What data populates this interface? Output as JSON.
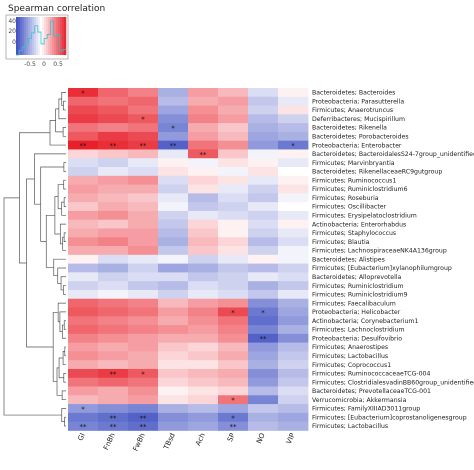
{
  "legend": {
    "title": "Spearman correlation",
    "hist_ticks": [
      "0",
      "20",
      "40"
    ],
    "color_ticks": [
      "-0.5",
      "0",
      "0.5"
    ]
  },
  "chart_data": {
    "type": "heatmap",
    "title": "",
    "columns": [
      "GI",
      "FnBh",
      "FwBh",
      "TBsd",
      "Ach",
      "SP",
      "NO",
      "VIP"
    ],
    "rows": [
      "Bacteroidetes; Bacteroides",
      "Proteobacteria; Parasutterella",
      "Firmicutes; Anaerotruncus",
      "Deferribacteres; Mucispirillum",
      "Bacteroidetes; Rikenella",
      "Bacteroidetes; Porobacteroides",
      "Proteobacteria; Enterobacter",
      "Bacteroidetes; BacteroidalesS24-7group_unidentified",
      "Firmicutes; Marvinbryantia",
      "Bacteroidetes; RikenellaceaeRC9gutgroup",
      "Firmicutes; Ruminococcus1",
      "Firmicutes; Ruminiclostridium6",
      "Firmicutes; Roseburia",
      "Firmicutes; Oscillibacter",
      "Firmicutes; Erysipelatoclostridium",
      "Actinobacteria; Enterorhabdus",
      "Firmicutes; Staphylococcus",
      "Firmicutes; Blautia",
      "Firmicutes; LachnospiraceaeNK4A136group",
      "Bacteroidetes; Alistipes",
      "Firmicutes; [Eubacterium]xylanophilumgroup",
      "Bacteroidetes; Alloprevotella",
      "Firmicutes; Ruminiclostridium",
      "Firmicutes; Ruminiclostridium9",
      "Firmicutes; Faecalibaculum",
      "Proteobacteria; Helicobacter",
      "Actinobacteria; Corynebacterium1",
      "Firmicutes; Lachnoclostridium",
      "Proteobacteria; Desulfovibrio",
      "Firmicutes; Anaerostipes",
      "Firmicutes; Lactobacillus",
      "Firmicutes; Coprococcus1",
      "Firmicutes; RuminococcaceaeTCG-004",
      "Firmicutes; ClostridialesvadinBB60group_unidentified",
      "Bacteroidetes; PrevotellaceaeTCG-001",
      "Verrucomicrobia; Akkermansia",
      "Firmicutes; FamilyXIIIAD3011group",
      "Firmicutes; [Eubacterium]coprostanoligenesgroup",
      "Firmicutes; Lactobacillus"
    ],
    "values": [
      [
        0.75,
        0.55,
        0.45,
        -0.35,
        0.35,
        0.25,
        -0.15,
        0.05
      ],
      [
        0.55,
        0.5,
        0.55,
        -0.3,
        0.3,
        0.35,
        -0.25,
        -0.1
      ],
      [
        0.65,
        0.6,
        0.5,
        -0.4,
        0.4,
        0.3,
        -0.2,
        0.1
      ],
      [
        0.7,
        0.65,
        0.6,
        -0.5,
        0.45,
        0.35,
        -0.3,
        -0.2
      ],
      [
        0.5,
        0.45,
        0.5,
        -0.55,
        0.3,
        0.2,
        -0.35,
        -0.3
      ],
      [
        0.6,
        0.7,
        0.65,
        -0.45,
        0.35,
        0.25,
        -0.4,
        -0.35
      ],
      [
        0.8,
        0.75,
        0.7,
        -0.7,
        0.5,
        0.4,
        -0.45,
        -0.6
      ],
      [
        0.15,
        0.2,
        0.25,
        -0.1,
        0.6,
        0.2,
        -0.05,
        0.05
      ],
      [
        -0.15,
        -0.2,
        -0.1,
        0.05,
        -0.05,
        0.1,
        0.05,
        -0.1
      ],
      [
        -0.2,
        -0.1,
        -0.15,
        0.1,
        0.05,
        -0.05,
        0.1,
        0.0
      ],
      [
        0.3,
        0.35,
        0.4,
        -0.15,
        0.15,
        0.1,
        -0.1,
        0.05
      ],
      [
        0.35,
        0.3,
        0.3,
        -0.2,
        0.1,
        -0.1,
        -0.2,
        0.1
      ],
      [
        0.3,
        0.25,
        0.2,
        -0.1,
        -0.3,
        -0.15,
        -0.25,
        -0.05
      ],
      [
        0.2,
        0.3,
        0.25,
        -0.05,
        -0.25,
        -0.2,
        -0.1,
        0.0
      ],
      [
        0.35,
        0.4,
        0.3,
        -0.2,
        -0.1,
        -0.15,
        -0.2,
        -0.1
      ],
      [
        0.25,
        0.2,
        0.3,
        -0.25,
        0.15,
        0.05,
        -0.15,
        0.05
      ],
      [
        0.3,
        0.35,
        0.35,
        -0.3,
        0.2,
        0.05,
        -0.2,
        -0.1
      ],
      [
        0.4,
        0.45,
        0.35,
        -0.35,
        0.25,
        0.15,
        -0.3,
        -0.15
      ],
      [
        0.3,
        0.3,
        0.4,
        -0.25,
        0.2,
        0.1,
        -0.2,
        -0.05
      ],
      [
        0.05,
        -0.15,
        -0.1,
        -0.05,
        -0.2,
        -0.1,
        0.05,
        -0.05
      ],
      [
        -0.3,
        -0.35,
        -0.2,
        -0.4,
        -0.35,
        -0.25,
        -0.3,
        -0.2
      ],
      [
        -0.1,
        -0.2,
        -0.15,
        -0.15,
        -0.25,
        -0.2,
        -0.1,
        -0.15
      ],
      [
        -0.2,
        -0.15,
        -0.25,
        -0.3,
        -0.15,
        -0.2,
        -0.35,
        -0.25
      ],
      [
        -0.1,
        -0.05,
        -0.1,
        -0.2,
        -0.1,
        -0.15,
        -0.25,
        -0.1
      ],
      [
        0.55,
        0.5,
        0.45,
        0.25,
        0.35,
        0.4,
        -0.5,
        -0.35
      ],
      [
        0.6,
        0.55,
        0.5,
        0.35,
        0.45,
        0.65,
        -0.6,
        -0.4
      ],
      [
        0.5,
        0.45,
        0.4,
        0.3,
        0.4,
        0.5,
        -0.65,
        -0.45
      ],
      [
        0.55,
        0.5,
        0.45,
        0.4,
        0.35,
        0.45,
        -0.55,
        -0.35
      ],
      [
        0.45,
        0.4,
        0.35,
        0.3,
        0.3,
        0.4,
        -0.7,
        -0.5
      ],
      [
        0.35,
        0.3,
        0.35,
        0.2,
        0.15,
        0.25,
        -0.45,
        -0.3
      ],
      [
        0.4,
        0.35,
        0.3,
        0.15,
        0.2,
        0.3,
        -0.4,
        -0.25
      ],
      [
        0.3,
        0.25,
        0.3,
        0.1,
        0.1,
        0.2,
        -0.35,
        -0.2
      ],
      [
        0.65,
        0.7,
        0.6,
        0.2,
        0.25,
        0.3,
        -0.5,
        -0.3
      ],
      [
        0.5,
        0.55,
        0.5,
        0.15,
        0.2,
        0.25,
        -0.45,
        -0.25
      ],
      [
        0.35,
        0.3,
        0.4,
        0.05,
        0.1,
        0.15,
        -0.3,
        -0.15
      ],
      [
        0.25,
        0.3,
        0.35,
        0.1,
        0.15,
        0.5,
        -0.55,
        -0.2
      ],
      [
        -0.45,
        -0.5,
        -0.55,
        -0.35,
        -0.3,
        -0.4,
        -0.25,
        -0.3
      ],
      [
        -0.6,
        -0.65,
        -0.7,
        -0.5,
        -0.45,
        -0.6,
        -0.35,
        -0.4
      ],
      [
        -0.55,
        -0.6,
        -0.65,
        -0.45,
        -0.4,
        -0.5,
        -0.3,
        -0.35
      ]
    ],
    "annotations": [
      {
        "row": 0,
        "col": 0,
        "text": "*"
      },
      {
        "row": 3,
        "col": 2,
        "text": "*"
      },
      {
        "row": 4,
        "col": 3,
        "text": "*"
      },
      {
        "row": 6,
        "col": 0,
        "text": "**"
      },
      {
        "row": 6,
        "col": 1,
        "text": "**"
      },
      {
        "row": 6,
        "col": 2,
        "text": "**"
      },
      {
        "row": 6,
        "col": 3,
        "text": "**"
      },
      {
        "row": 6,
        "col": 7,
        "text": "*"
      },
      {
        "row": 7,
        "col": 4,
        "text": "**"
      },
      {
        "row": 25,
        "col": 5,
        "text": "*"
      },
      {
        "row": 25,
        "col": 6,
        "text": "*"
      },
      {
        "row": 28,
        "col": 6,
        "text": "**"
      },
      {
        "row": 32,
        "col": 1,
        "text": "**"
      },
      {
        "row": 32,
        "col": 2,
        "text": "*"
      },
      {
        "row": 35,
        "col": 5,
        "text": "*"
      },
      {
        "row": 36,
        "col": 0,
        "text": "*"
      },
      {
        "row": 37,
        "col": 1,
        "text": "**"
      },
      {
        "row": 37,
        "col": 2,
        "text": "**"
      },
      {
        "row": 37,
        "col": 5,
        "text": "*"
      },
      {
        "row": 38,
        "col": 0,
        "text": "**"
      },
      {
        "row": 38,
        "col": 1,
        "text": "**"
      },
      {
        "row": 38,
        "col": 2,
        "text": "**"
      },
      {
        "row": 38,
        "col": 5,
        "text": "**"
      }
    ],
    "color_scale": {
      "min": -0.8,
      "max": 0.8,
      "low": "#3b4cc0",
      "mid": "#ffffff",
      "high": "#e8202a"
    }
  }
}
